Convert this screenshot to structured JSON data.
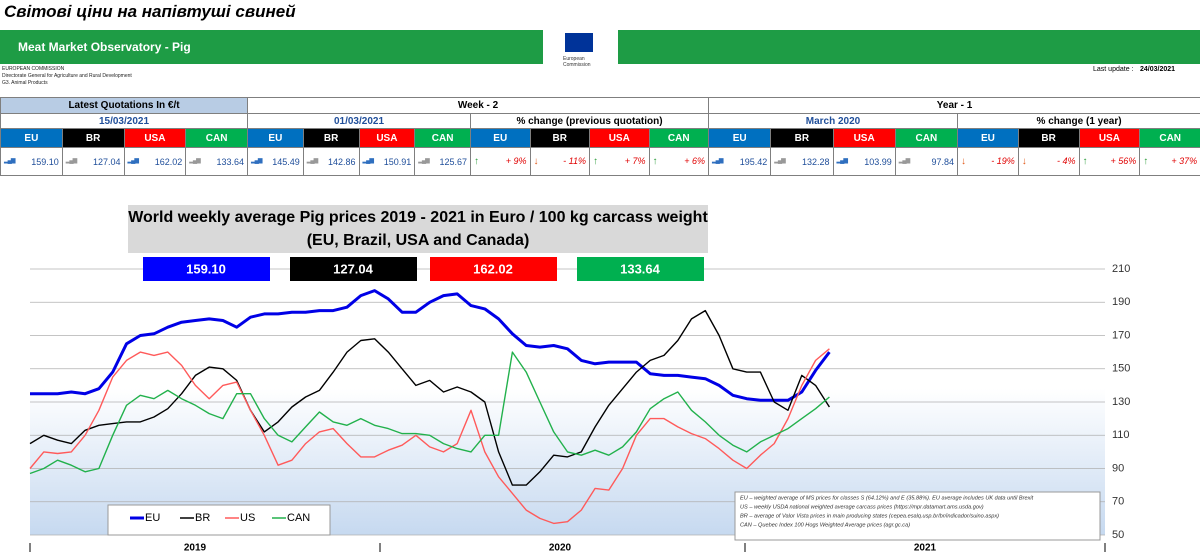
{
  "header": {
    "page_title": "Світові ціни на напівтуші свиней",
    "banner": "Meat Market Observatory - Pig",
    "logo_text": [
      "European",
      "Commission"
    ],
    "org": [
      "EUROPEAN COMMISSION",
      "Directorate General for Agriculture and Rural Development",
      "G3. Animal Products"
    ],
    "last_update_label": "Last update :",
    "last_update": "24/03/2021"
  },
  "table": {
    "groups": [
      "Latest Quotations In €/t",
      "Week - 2",
      "Year - 1"
    ],
    "subheaders": [
      "15/03/2021",
      "01/03/2021",
      "% change (previous quotation)",
      "March 2020",
      "% change (1 year)"
    ],
    "countries": [
      "EU",
      "BR",
      "USA",
      "CAN"
    ],
    "latest": [
      "159.10",
      "127.04",
      "162.02",
      "133.64"
    ],
    "week2": [
      "145.49",
      "142.86",
      "150.91",
      "125.67"
    ],
    "week2_change": [
      "+ 9%",
      "- 11%",
      "+ 7%",
      "+ 6%"
    ],
    "year1": [
      "195.42",
      "132.28",
      "103.99",
      "97.84"
    ],
    "year1_change": [
      "- 19%",
      "- 4%",
      "+ 56%",
      "+ 37%"
    ]
  },
  "chart_data": {
    "type": "line",
    "title": "World weekly average Pig prices 2019 - 2021  in Euro / 100 kg carcass weight",
    "subtitle": "(EU, Brazil, USA and Canada)",
    "value_boxes": [
      {
        "label": "159.10",
        "color": "#0000ff"
      },
      {
        "label": "127.04",
        "color": "#000000"
      },
      {
        "label": "162.02",
        "color": "#ff0000"
      },
      {
        "label": "133.64",
        "color": "#00b050"
      }
    ],
    "categories": [
      null,
      null,
      null,
      null,
      null,
      null,
      null,
      null,
      null,
      null,
      null,
      null,
      null,
      null,
      null,
      null,
      null,
      null,
      null,
      null,
      null,
      null,
      null,
      null,
      null,
      null,
      null,
      null,
      null,
      null,
      null,
      null,
      null,
      null,
      null,
      null,
      null,
      null,
      null,
      null,
      null,
      null,
      null,
      null,
      null,
      null,
      null,
      null,
      null,
      null,
      null,
      null,
      null,
      null,
      null,
      null,
      null,
      null,
      null
    ],
    "year_labels": [
      "2019",
      "2020",
      "2021"
    ],
    "ylim": [
      50,
      210
    ],
    "yticks": [
      50,
      70,
      90,
      110,
      130,
      150,
      170,
      190,
      210
    ],
    "grid": true,
    "series": [
      {
        "name": "EU",
        "color": "#0000e6",
        "values": [
          135,
          135,
          135,
          136,
          135,
          138,
          148,
          165,
          170,
          171,
          175,
          178,
          179,
          180,
          179,
          175,
          181,
          183,
          183,
          184,
          184,
          185,
          185,
          187,
          194,
          197,
          192,
          184,
          184,
          190,
          194,
          195,
          188,
          186,
          180,
          171,
          164,
          163,
          164,
          162,
          155,
          153,
          154,
          154,
          154,
          147,
          146,
          146,
          145,
          144,
          140,
          134,
          132,
          131,
          131,
          131,
          136,
          149,
          160
        ]
      },
      {
        "name": "BR",
        "color": "#000000",
        "values": [
          105,
          110,
          107,
          105,
          113,
          116,
          117,
          118,
          118,
          121,
          126,
          135,
          146,
          151,
          150,
          143,
          125,
          112,
          118,
          127,
          133,
          137,
          148,
          160,
          167,
          168,
          160,
          150,
          140,
          143,
          136,
          139,
          136,
          130,
          100,
          80,
          80,
          88,
          98,
          97,
          100,
          115,
          128,
          138,
          148,
          155,
          158,
          167,
          180,
          185,
          170,
          150,
          148,
          148,
          130,
          125,
          146,
          140,
          127
        ]
      },
      {
        "name": "US",
        "color": "#ff5a5a",
        "values": [
          90,
          100,
          99,
          100,
          110,
          125,
          145,
          155,
          160,
          158,
          160,
          152,
          140,
          132,
          140,
          142,
          125,
          110,
          92,
          95,
          105,
          112,
          114,
          105,
          97,
          97,
          101,
          104,
          110,
          103,
          100,
          105,
          125,
          100,
          85,
          75,
          65,
          60,
          57,
          58,
          65,
          78,
          77,
          90,
          110,
          120,
          120,
          115,
          111,
          108,
          102,
          95,
          90,
          98,
          105,
          120,
          140,
          155,
          162
        ]
      },
      {
        "name": "CAN",
        "color": "#22b14c",
        "values": [
          87,
          90,
          95,
          92,
          88,
          90,
          110,
          128,
          134,
          132,
          137,
          132,
          128,
          123,
          120,
          135,
          135,
          120,
          110,
          106,
          115,
          124,
          118,
          116,
          120,
          116,
          114,
          111,
          111,
          110,
          105,
          102,
          100,
          110,
          110,
          160,
          148,
          130,
          112,
          100,
          98,
          101,
          98,
          103,
          112,
          126,
          132,
          136,
          125,
          118,
          110,
          104,
          100,
          106,
          110,
          114,
          120,
          126,
          133
        ]
      }
    ],
    "notes": [
      "EU    – weighted average of MS prices for classes S (64.12%) and E (35.88%). EU average includes UK data  until Brexit",
      "US    – weekly USDA national weighted average carcass prices (https://mpr.datamart.ams.usda.gov)",
      "BR    – average of Valor Vista prices in main producing states (cepea.esalq.usp.br/br/indicador/suino.aspx)",
      "CAN – Quebec Index 100 Hogs Weighted Average prices (agr.gc.ca)"
    ]
  }
}
